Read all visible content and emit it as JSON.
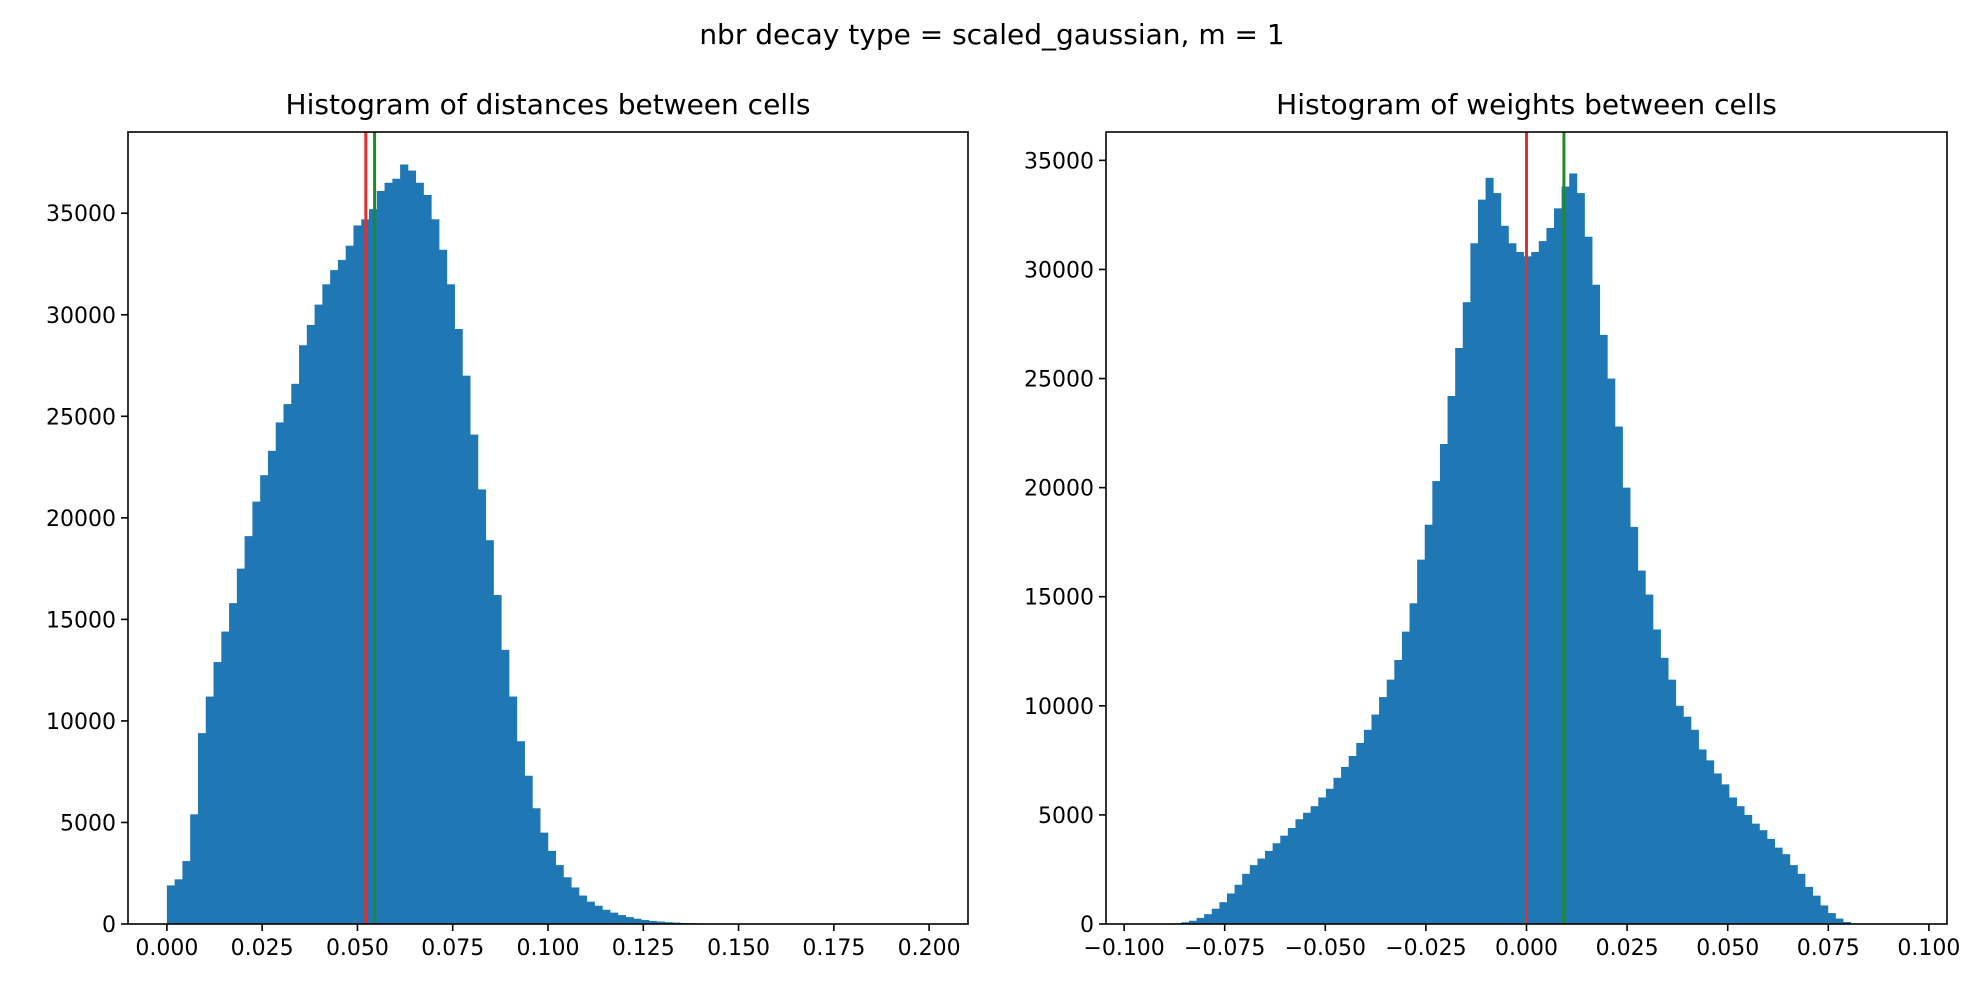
{
  "figure": {
    "suptitle": "nbr decay type = scaled_gaussian, m = 1"
  },
  "colors": {
    "bar": "#1f77b4",
    "red_line": "#e03030",
    "green_line": "#208a28"
  },
  "chart_data": [
    {
      "type": "bar",
      "title": "Histogram of distances between cells",
      "xlabel": "",
      "ylabel": "",
      "xlim": [
        -0.0102,
        0.2102
      ],
      "ylim": [
        0,
        39000
      ],
      "xticks": [
        "0.000",
        "0.025",
        "0.050",
        "0.075",
        "0.100",
        "0.125",
        "0.150",
        "0.175",
        "0.200"
      ],
      "yticks": [
        "0",
        "5000",
        "10000",
        "15000",
        "20000",
        "25000",
        "30000",
        "35000"
      ],
      "bin_start": 0.0,
      "bin_width": 0.00204,
      "values": [
        1900,
        2200,
        3100,
        5400,
        9400,
        11200,
        12900,
        14400,
        15800,
        17500,
        19100,
        20800,
        22100,
        23300,
        24700,
        25600,
        26600,
        28500,
        29500,
        30500,
        31500,
        32200,
        32700,
        33400,
        34400,
        34700,
        35200,
        36100,
        36500,
        36700,
        37400,
        37100,
        36500,
        35900,
        34700,
        33200,
        31500,
        29300,
        27000,
        24100,
        21400,
        18900,
        16200,
        13500,
        11200,
        9000,
        7300,
        5700,
        4500,
        3600,
        2900,
        2300,
        1800,
        1400,
        1100,
        900,
        700,
        560,
        440,
        340,
        260,
        200,
        150,
        120,
        90,
        70,
        50,
        40,
        30,
        22,
        16,
        12,
        9,
        6,
        4,
        3,
        2,
        1,
        1,
        1,
        0,
        0,
        0,
        0,
        0,
        0,
        0,
        0,
        0,
        0,
        0,
        0,
        0,
        0,
        0,
        0,
        0,
        0,
        0,
        0
      ],
      "vlines": [
        {
          "x": 0.0522,
          "color": "red"
        },
        {
          "x": 0.0545,
          "color": "green"
        }
      ]
    },
    {
      "type": "bar",
      "title": "Histogram of weights between cells",
      "xlabel": "",
      "ylabel": "",
      "xlim": [
        -0.1045,
        0.1045
      ],
      "ylim": [
        0,
        36300
      ],
      "xticks": [
        "−0.100",
        "−0.075",
        "−0.050",
        "−0.025",
        "0.000",
        "0.025",
        "0.050",
        "0.075",
        "0.100"
      ],
      "yticks": [
        "0",
        "5000",
        "10000",
        "15000",
        "20000",
        "25000",
        "30000",
        "35000"
      ],
      "bin_start": -0.099,
      "bin_width": 0.00189,
      "values": [
        0,
        0,
        0,
        0,
        0,
        10,
        30,
        80,
        150,
        280,
        450,
        700,
        1000,
        1400,
        1800,
        2300,
        2700,
        3000,
        3350,
        3700,
        4050,
        4400,
        4800,
        5100,
        5400,
        5800,
        6200,
        6700,
        7200,
        7700,
        8300,
        8900,
        9600,
        10400,
        11200,
        12100,
        13400,
        14700,
        16700,
        18300,
        20300,
        22000,
        24200,
        26400,
        28500,
        31200,
        33200,
        34200,
        33500,
        32000,
        31200,
        30800,
        30600,
        30800,
        31300,
        31900,
        32800,
        33800,
        34400,
        33500,
        31500,
        29300,
        27000,
        25000,
        22800,
        20000,
        18200,
        16200,
        15100,
        13500,
        12200,
        11200,
        10000,
        9500,
        8900,
        8000,
        7500,
        6900,
        6400,
        5800,
        5400,
        5000,
        4600,
        4300,
        3900,
        3500,
        3200,
        2700,
        2300,
        1700,
        1300,
        850,
        500,
        250,
        90,
        20,
        0,
        0,
        0,
        0,
        0,
        0,
        0,
        0,
        0,
        0,
        0,
        0
      ],
      "vlines": [
        {
          "x": 0.0,
          "color": "red"
        },
        {
          "x": 0.0093,
          "color": "green"
        }
      ]
    }
  ]
}
